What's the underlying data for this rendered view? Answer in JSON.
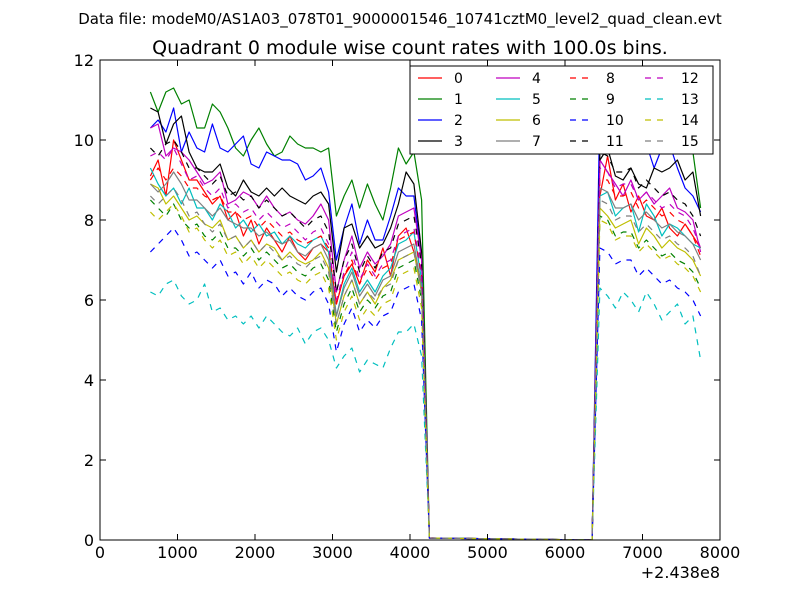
{
  "chart_data": {
    "type": "line",
    "suptitle": "Data file: modeM0/AS1A03_078T01_9000001546_10741cztM0_level2_quad_clean.evt",
    "title": "Quadrant 0 module wise count rates with 100.0s bins.",
    "xlabel": "",
    "ylabel": "",
    "x_offset_label": "+2.438e8",
    "xlim": [
      0,
      8000
    ],
    "ylim": [
      0,
      12
    ],
    "xticks": [
      0,
      1000,
      2000,
      3000,
      4000,
      5000,
      6000,
      7000,
      8000
    ],
    "xtick_labels": [
      "0",
      "1000",
      "2000",
      "3000",
      "4000",
      "5000",
      "6000",
      "7000",
      "8000"
    ],
    "yticks": [
      0,
      2,
      4,
      6,
      8,
      10,
      12
    ],
    "ytick_labels": [
      "0",
      "2",
      "4",
      "6",
      "8",
      "10",
      "12"
    ],
    "legend_position": "top-right",
    "legend_columns": 4,
    "x": [
      650,
      750,
      850,
      950,
      1050,
      1150,
      1250,
      1350,
      1450,
      1550,
      1650,
      1750,
      1850,
      1950,
      2050,
      2150,
      2250,
      2350,
      2450,
      2550,
      2650,
      2750,
      2850,
      2950,
      3050,
      3150,
      3250,
      3350,
      3450,
      3550,
      3650,
      3750,
      3850,
      3950,
      4050,
      4150,
      4250,
      6350,
      6450,
      6550,
      6650,
      6750,
      6850,
      6950,
      7050,
      7150,
      7250,
      7350,
      7450,
      7550,
      7650,
      7750
    ],
    "series": [
      {
        "name": "0",
        "color": "#ff0000",
        "dash": "solid",
        "values": [
          9.1,
          9.5,
          8.6,
          10.0,
          9.5,
          9.0,
          9.0,
          8.7,
          8.4,
          8.6,
          8.0,
          8.2,
          7.6,
          8.0,
          7.4,
          7.8,
          7.5,
          7.2,
          7.6,
          7.2,
          7.0,
          7.3,
          7.4,
          7.2,
          5.9,
          6.6,
          6.9,
          6.4,
          7.0,
          6.7,
          7.3,
          6.6,
          7.6,
          7.8,
          7.2,
          6.4,
          0.05,
          0.0,
          8.6,
          9.6,
          8.5,
          8.9,
          8.2,
          8.6,
          8.1,
          8.0,
          8.3,
          7.8,
          7.6,
          7.9,
          7.6,
          7.3
        ]
      },
      {
        "name": "1",
        "color": "#008000",
        "dash": "solid",
        "values": [
          11.2,
          10.7,
          11.2,
          11.3,
          10.9,
          11.0,
          10.3,
          10.3,
          10.9,
          10.7,
          10.3,
          9.8,
          9.6,
          10.0,
          10.3,
          9.9,
          9.6,
          9.7,
          10.1,
          9.9,
          9.8,
          9.8,
          9.7,
          9.8,
          8.1,
          8.6,
          9.0,
          8.3,
          8.9,
          8.4,
          8.0,
          8.8,
          9.8,
          9.4,
          9.7,
          8.5,
          0.05,
          0.0,
          10.2,
          10.8,
          11.0,
          10.4,
          10.8,
          10.4,
          10.5,
          10.1,
          10.2,
          10.2,
          10.1,
          10.0,
          9.7,
          8.3
        ]
      },
      {
        "name": "2",
        "color": "#0000ff",
        "dash": "solid",
        "values": [
          10.3,
          10.5,
          10.2,
          10.8,
          9.7,
          10.2,
          9.8,
          9.7,
          10.4,
          9.8,
          9.7,
          9.9,
          10.1,
          9.4,
          9.3,
          9.7,
          9.6,
          9.5,
          9.5,
          9.4,
          9.0,
          9.1,
          9.3,
          8.7,
          7.0,
          7.8,
          8.4,
          7.4,
          8.0,
          7.5,
          7.5,
          8.1,
          8.8,
          8.6,
          8.6,
          7.0,
          0.05,
          0.0,
          10.9,
          10.8,
          10.4,
          10.0,
          10.3,
          9.7,
          9.9,
          9.3,
          9.8,
          9.9,
          9.3,
          8.8,
          8.6,
          8.2
        ]
      },
      {
        "name": "3",
        "color": "#000000",
        "dash": "solid",
        "values": [
          10.8,
          10.7,
          9.9,
          10.4,
          10.6,
          9.7,
          9.3,
          9.2,
          9.2,
          9.4,
          8.8,
          8.6,
          9.0,
          8.7,
          8.6,
          8.8,
          8.6,
          8.8,
          8.6,
          8.5,
          8.4,
          8.6,
          8.7,
          8.4,
          6.7,
          7.8,
          7.9,
          7.3,
          7.6,
          7.3,
          7.4,
          7.8,
          8.4,
          9.2,
          8.9,
          7.2,
          0.05,
          0.0,
          9.5,
          9.8,
          9.1,
          9.0,
          9.3,
          8.9,
          8.8,
          9.3,
          9.2,
          9.3,
          9.5,
          9.0,
          9.2,
          8.1
        ]
      },
      {
        "name": "4",
        "color": "#bf00bf",
        "dash": "solid",
        "values": [
          10.3,
          10.4,
          9.6,
          9.8,
          9.7,
          9.5,
          9.2,
          8.9,
          9.0,
          9.2,
          8.4,
          8.5,
          8.7,
          8.6,
          8.3,
          8.6,
          8.3,
          8.1,
          8.2,
          8.0,
          7.9,
          8.1,
          8.4,
          8.0,
          6.2,
          7.0,
          7.6,
          6.8,
          7.2,
          6.9,
          7.1,
          7.4,
          8.1,
          8.2,
          8.3,
          7.0,
          0.05,
          0.0,
          9.5,
          9.2,
          8.9,
          8.6,
          9.0,
          8.5,
          8.7,
          8.4,
          8.6,
          8.8,
          8.3,
          8.2,
          8.0,
          7.2
        ]
      },
      {
        "name": "5",
        "color": "#00bfbf",
        "dash": "solid",
        "values": [
          9.3,
          8.9,
          8.6,
          8.8,
          8.4,
          8.8,
          8.3,
          8.3,
          8.0,
          8.4,
          8.2,
          7.8,
          8.0,
          7.7,
          7.9,
          7.6,
          7.7,
          7.4,
          7.6,
          7.4,
          7.3,
          7.5,
          7.6,
          7.2,
          5.6,
          6.4,
          6.8,
          6.2,
          6.5,
          6.2,
          6.6,
          6.8,
          7.4,
          7.5,
          7.7,
          6.5,
          0.05,
          0.0,
          8.6,
          8.7,
          8.1,
          8.3,
          8.4,
          7.7,
          8.4,
          8.1,
          7.6,
          7.9,
          7.8,
          7.6,
          7.4,
          7.3
        ]
      },
      {
        "name": "6",
        "color": "#bfbf00",
        "dash": "solid",
        "values": [
          8.9,
          8.8,
          8.4,
          8.6,
          8.3,
          8.0,
          8.1,
          7.9,
          7.8,
          8.0,
          7.5,
          7.6,
          7.3,
          7.5,
          7.2,
          7.4,
          7.3,
          7.0,
          7.2,
          7.0,
          6.9,
          7.0,
          7.2,
          6.8,
          5.4,
          6.1,
          6.5,
          5.9,
          6.2,
          5.9,
          6.3,
          6.5,
          7.0,
          7.1,
          7.2,
          6.2,
          0.05,
          0.0,
          8.3,
          8.1,
          7.8,
          7.9,
          8.0,
          7.4,
          7.8,
          7.6,
          7.3,
          7.5,
          7.3,
          7.2,
          7.0,
          6.6
        ]
      },
      {
        "name": "7",
        "color": "#7f7f7f",
        "dash": "solid",
        "values": [
          8.9,
          8.7,
          8.9,
          9.2,
          8.9,
          8.5,
          8.5,
          8.3,
          8.1,
          8.3,
          8.0,
          7.9,
          7.8,
          7.8,
          7.6,
          7.7,
          7.5,
          7.4,
          7.5,
          7.2,
          7.1,
          7.3,
          7.4,
          7.0,
          5.6,
          6.3,
          6.7,
          6.1,
          6.4,
          6.1,
          6.5,
          6.6,
          7.2,
          7.3,
          7.4,
          6.3,
          0.05,
          0.0,
          8.8,
          8.7,
          8.3,
          8.3,
          8.4,
          8.0,
          8.2,
          8.0,
          7.8,
          7.9,
          7.7,
          7.6,
          7.4,
          7.0
        ]
      },
      {
        "name": "8",
        "color": "#ff0000",
        "dash": "dashed",
        "values": [
          9.0,
          9.3,
          9.0,
          9.3,
          9.1,
          8.8,
          8.8,
          8.6,
          8.5,
          8.6,
          8.2,
          8.2,
          8.0,
          8.1,
          7.8,
          8.0,
          7.8,
          7.6,
          7.7,
          7.5,
          7.4,
          7.5,
          7.6,
          7.3,
          5.9,
          6.6,
          7.0,
          6.4,
          6.8,
          6.5,
          6.8,
          6.9,
          7.5,
          7.6,
          7.7,
          6.6,
          0.05,
          0.0,
          9.0,
          9.0,
          8.6,
          8.6,
          8.7,
          8.3,
          8.5,
          8.3,
          8.1,
          8.2,
          8.0,
          7.9,
          7.6,
          7.1
        ]
      },
      {
        "name": "9",
        "color": "#008000",
        "dash": "dashed",
        "values": [
          8.5,
          8.3,
          8.1,
          8.4,
          8.0,
          7.8,
          7.9,
          7.6,
          7.5,
          7.7,
          7.3,
          7.3,
          7.1,
          7.3,
          7.0,
          7.2,
          7.0,
          6.8,
          6.9,
          6.7,
          6.6,
          6.8,
          6.9,
          6.5,
          5.2,
          5.9,
          6.3,
          5.7,
          6.0,
          5.8,
          6.1,
          6.2,
          6.8,
          6.9,
          7.0,
          6.0,
          0.05,
          0.0,
          8.1,
          8.0,
          7.6,
          7.7,
          7.7,
          7.3,
          7.5,
          7.3,
          7.1,
          7.2,
          7.0,
          6.9,
          6.7,
          6.3
        ]
      },
      {
        "name": "10",
        "color": "#0000ff",
        "dash": "dashed",
        "values": [
          7.2,
          7.4,
          7.6,
          7.8,
          7.5,
          7.1,
          7.2,
          7.0,
          6.8,
          7.0,
          6.6,
          6.7,
          6.4,
          6.7,
          6.3,
          6.5,
          6.4,
          6.1,
          6.3,
          6.1,
          6.0,
          6.2,
          6.3,
          5.9,
          4.7,
          5.4,
          5.8,
          5.2,
          5.5,
          5.3,
          5.6,
          5.7,
          6.2,
          6.3,
          6.4,
          5.5,
          0.05,
          0.0,
          7.3,
          7.2,
          6.9,
          7.0,
          7.0,
          6.6,
          6.8,
          6.6,
          6.4,
          6.5,
          6.3,
          6.2,
          6.0,
          5.6
        ]
      },
      {
        "name": "11",
        "color": "#000000",
        "dash": "dashed",
        "values": [
          9.8,
          9.6,
          9.9,
          10.0,
          9.7,
          9.3,
          9.3,
          9.1,
          8.9,
          9.1,
          8.6,
          8.7,
          8.5,
          8.6,
          8.3,
          8.5,
          8.3,
          8.1,
          8.2,
          8.0,
          7.8,
          8.0,
          8.1,
          7.7,
          6.2,
          7.0,
          7.4,
          6.7,
          7.1,
          6.8,
          7.2,
          7.3,
          7.9,
          8.0,
          8.1,
          6.9,
          0.05,
          0.0,
          9.7,
          9.6,
          9.2,
          9.2,
          9.3,
          8.8,
          9.0,
          8.8,
          8.6,
          8.7,
          8.5,
          8.4,
          8.1,
          7.6
        ]
      },
      {
        "name": "12",
        "color": "#bf00bf",
        "dash": "dashed",
        "values": [
          9.6,
          9.7,
          9.5,
          9.8,
          9.4,
          9.0,
          9.1,
          8.8,
          8.6,
          8.8,
          8.3,
          8.4,
          8.2,
          8.3,
          8.0,
          8.2,
          8.0,
          7.8,
          7.9,
          7.7,
          7.5,
          7.7,
          7.8,
          7.4,
          6.0,
          6.7,
          7.2,
          6.5,
          6.9,
          6.6,
          6.9,
          7.0,
          7.6,
          7.7,
          7.8,
          6.7,
          0.05,
          0.0,
          9.3,
          9.2,
          8.8,
          8.9,
          8.9,
          8.5,
          8.7,
          8.5,
          8.3,
          8.4,
          8.2,
          8.1,
          7.8,
          7.3
        ]
      },
      {
        "name": "13",
        "color": "#00bfbf",
        "dash": "dashed",
        "values": [
          6.2,
          6.1,
          6.4,
          6.5,
          6.1,
          5.9,
          6.0,
          6.4,
          5.7,
          5.8,
          5.5,
          5.6,
          5.4,
          5.6,
          5.3,
          5.6,
          5.4,
          5.2,
          5.1,
          5.3,
          4.9,
          5.2,
          5.3,
          5.0,
          4.3,
          4.6,
          4.8,
          4.2,
          4.5,
          4.4,
          4.3,
          4.8,
          5.2,
          5.2,
          5.4,
          4.6,
          0.05,
          0.0,
          6.3,
          6.1,
          5.8,
          6.2,
          6.0,
          5.7,
          6.2,
          5.9,
          5.5,
          5.7,
          5.9,
          5.4,
          5.6,
          4.5
        ]
      },
      {
        "name": "14",
        "color": "#bfbf00",
        "dash": "dashed",
        "values": [
          8.2,
          8.0,
          8.2,
          8.4,
          8.1,
          7.7,
          7.8,
          7.5,
          7.3,
          7.5,
          7.1,
          7.2,
          6.9,
          7.1,
          6.8,
          7.0,
          6.8,
          6.6,
          6.7,
          6.5,
          6.4,
          6.6,
          6.7,
          6.3,
          5.0,
          5.7,
          6.1,
          5.5,
          5.8,
          5.6,
          5.9,
          6.0,
          6.6,
          6.7,
          6.8,
          5.8,
          0.05,
          0.0,
          8.0,
          7.9,
          7.5,
          7.6,
          7.6,
          7.2,
          7.4,
          7.2,
          7.0,
          7.1,
          6.9,
          6.8,
          6.6,
          6.2
        ]
      },
      {
        "name": "15",
        "color": "#7f7f7f",
        "dash": "dashed",
        "values": [
          8.6,
          8.4,
          8.6,
          8.8,
          8.5,
          8.1,
          8.2,
          7.9,
          7.7,
          7.9,
          7.5,
          7.6,
          7.3,
          7.5,
          7.2,
          7.4,
          7.2,
          7.0,
          7.1,
          6.9,
          6.8,
          7.0,
          7.1,
          6.7,
          5.4,
          6.1,
          6.5,
          5.9,
          6.2,
          6.0,
          6.3,
          6.4,
          7.0,
          7.1,
          7.2,
          6.2,
          0.05,
          0.0,
          8.5,
          8.4,
          8.0,
          8.1,
          8.1,
          7.7,
          7.9,
          7.7,
          7.5,
          7.6,
          7.4,
          7.3,
          7.1,
          6.6
        ]
      }
    ]
  }
}
